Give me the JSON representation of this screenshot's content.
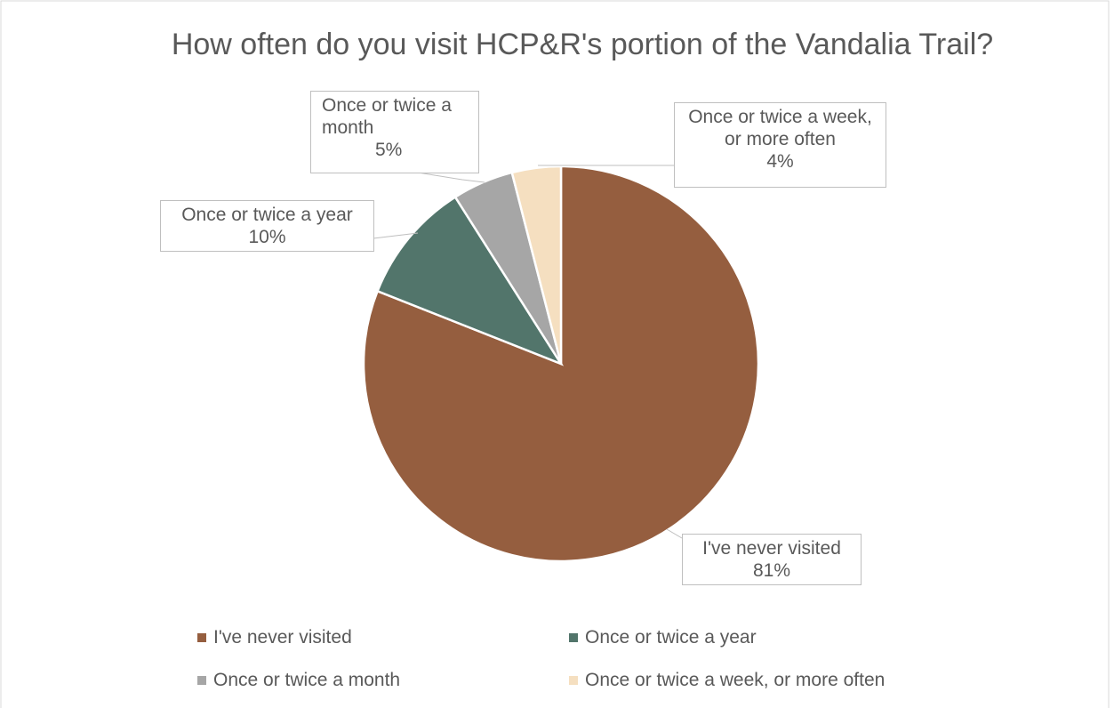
{
  "chart_data": {
    "type": "pie",
    "title": "How often do you visit HCP&R's portion of the Vandalia Trail?",
    "categories": [
      "I've never visited",
      "Once or twice a year",
      "Once or twice a month",
      "Once or twice a week, or more often"
    ],
    "values": [
      81,
      10,
      5,
      4
    ],
    "value_labels": [
      "81%",
      "10%",
      "5%",
      "4%"
    ],
    "colors": [
      "#955e3f",
      "#52756b",
      "#a6a6a6",
      "#f5dfc0"
    ],
    "legend": "bottom"
  }
}
